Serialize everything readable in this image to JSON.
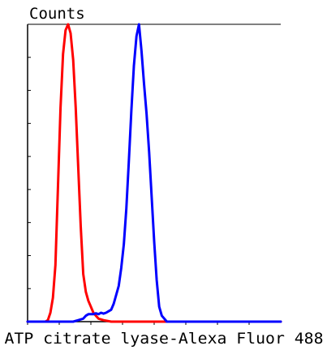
{
  "chart_data": {
    "type": "line",
    "title": "",
    "ylabel": "Counts",
    "xlabel": "ATP citrate lyase-Alexa Fluor 488",
    "xlim": [
      0,
      100
    ],
    "ylim": [
      0,
      100
    ],
    "x_tick_count": 8,
    "y_tick_count": 9,
    "grid": false,
    "legend": "none",
    "series": [
      {
        "color": "#ff0000",
        "points": [
          [
            0,
            0
          ],
          [
            7,
            0
          ],
          [
            8,
            0.5
          ],
          [
            9,
            3
          ],
          [
            10,
            8
          ],
          [
            11,
            19
          ],
          [
            12,
            45
          ],
          [
            13,
            72
          ],
          [
            14,
            90
          ],
          [
            15,
            98
          ],
          [
            16,
            100
          ],
          [
            17,
            97
          ],
          [
            18,
            88
          ],
          [
            19,
            72
          ],
          [
            20,
            52
          ],
          [
            21,
            32
          ],
          [
            22,
            16
          ],
          [
            23,
            10
          ],
          [
            24,
            7
          ],
          [
            25,
            5
          ],
          [
            26,
            3
          ],
          [
            27,
            2
          ],
          [
            28,
            1
          ],
          [
            30,
            0.5
          ],
          [
            33,
            0
          ],
          [
            100,
            0
          ]
        ]
      },
      {
        "color": "#0000ff",
        "points": [
          [
            0,
            0
          ],
          [
            18,
            0
          ],
          [
            20,
            0.5
          ],
          [
            22,
            1
          ],
          [
            23,
            2
          ],
          [
            24,
            2.5
          ],
          [
            26,
            2.5
          ],
          [
            27,
            2.8
          ],
          [
            28,
            2.5
          ],
          [
            29,
            3
          ],
          [
            30,
            2.7
          ],
          [
            31,
            3
          ],
          [
            32,
            3.5
          ],
          [
            33,
            4
          ],
          [
            34,
            6
          ],
          [
            35,
            9
          ],
          [
            36,
            12
          ],
          [
            37,
            18
          ],
          [
            38,
            26
          ],
          [
            39,
            38
          ],
          [
            40,
            54
          ],
          [
            41,
            71
          ],
          [
            42,
            86
          ],
          [
            43,
            96
          ],
          [
            44,
            100
          ],
          [
            45,
            91
          ],
          [
            46,
            80
          ],
          [
            47,
            70
          ],
          [
            48,
            57
          ],
          [
            49,
            42
          ],
          [
            50,
            27
          ],
          [
            51,
            14
          ],
          [
            52,
            5
          ],
          [
            53,
            2
          ],
          [
            54,
            1
          ],
          [
            55,
            0
          ],
          [
            100,
            0
          ]
        ]
      }
    ]
  }
}
